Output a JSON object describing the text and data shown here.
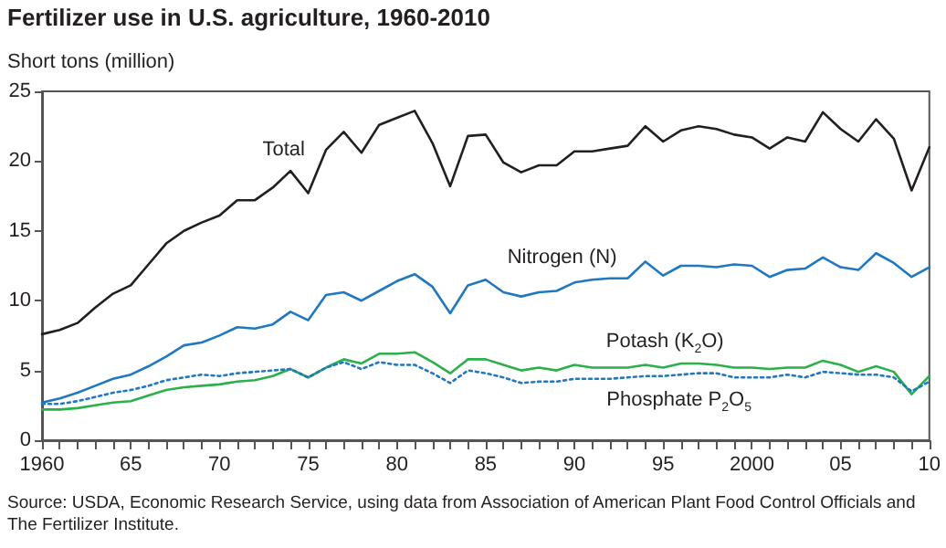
{
  "chart_data": {
    "type": "line",
    "title": "Fertilizer use in U.S. agriculture, 1960-2010",
    "ylabel": "Short tons (million)",
    "x": [
      1960,
      1961,
      1962,
      1963,
      1964,
      1965,
      1966,
      1967,
      1968,
      1969,
      1970,
      1971,
      1972,
      1973,
      1974,
      1975,
      1976,
      1977,
      1978,
      1979,
      1980,
      1981,
      1982,
      1983,
      1984,
      1985,
      1986,
      1987,
      1988,
      1989,
      1990,
      1991,
      1992,
      1993,
      1994,
      1995,
      1996,
      1997,
      1998,
      1999,
      2000,
      2001,
      2002,
      2003,
      2004,
      2005,
      2006,
      2007,
      2008,
      2009,
      2010
    ],
    "series": [
      {
        "name": "Total",
        "color": "#231f20",
        "line_style": "solid",
        "values": [
          7.6,
          7.9,
          8.4,
          9.5,
          10.5,
          11.1,
          12.6,
          14.1,
          15.0,
          15.6,
          16.1,
          17.2,
          17.2,
          18.1,
          19.3,
          17.7,
          20.8,
          22.1,
          20.6,
          22.6,
          23.1,
          23.6,
          21.3,
          18.2,
          21.8,
          21.9,
          19.9,
          19.2,
          19.7,
          19.7,
          20.7,
          20.7,
          20.9,
          21.1,
          22.5,
          21.4,
          22.2,
          22.5,
          22.3,
          21.9,
          21.7,
          20.9,
          21.7,
          21.4,
          23.5,
          22.3,
          21.4,
          23.0,
          21.6,
          17.9,
          21.0
        ]
      },
      {
        "name": "Nitrogen (N)",
        "color": "#1f78c1",
        "line_style": "solid",
        "values": [
          2.7,
          3.0,
          3.4,
          3.9,
          4.4,
          4.7,
          5.3,
          6.0,
          6.8,
          7.0,
          7.5,
          8.1,
          8.0,
          8.3,
          9.2,
          8.6,
          10.4,
          10.6,
          10.0,
          10.7,
          11.4,
          11.9,
          11.0,
          9.1,
          11.1,
          11.5,
          10.6,
          10.3,
          10.6,
          10.7,
          11.3,
          11.5,
          11.6,
          11.6,
          12.8,
          11.8,
          12.5,
          12.5,
          12.4,
          12.6,
          12.5,
          11.7,
          12.2,
          12.3,
          13.1,
          12.4,
          12.2,
          13.4,
          12.7,
          11.7,
          12.4
        ]
      },
      {
        "name": "Potash (K$_{2}$O)",
        "color": "#2bb04a",
        "line_style": "solid",
        "values": [
          2.2,
          2.2,
          2.3,
          2.5,
          2.7,
          2.8,
          3.2,
          3.6,
          3.8,
          3.9,
          4.0,
          4.2,
          4.3,
          4.6,
          5.1,
          4.5,
          5.2,
          5.8,
          5.5,
          6.2,
          6.2,
          6.3,
          5.6,
          4.8,
          5.8,
          5.8,
          5.4,
          5.0,
          5.2,
          5.0,
          5.4,
          5.2,
          5.2,
          5.2,
          5.4,
          5.2,
          5.5,
          5.5,
          5.4,
          5.2,
          5.2,
          5.1,
          5.2,
          5.2,
          5.7,
          5.4,
          4.9,
          5.3,
          4.9,
          3.3,
          4.6
        ]
      },
      {
        "name": "Phosphate P$_{2}$O$_{5}$",
        "color": "#1f78c1",
        "line_style": "dotted",
        "values": [
          2.6,
          2.6,
          2.8,
          3.1,
          3.4,
          3.6,
          3.9,
          4.3,
          4.5,
          4.7,
          4.6,
          4.8,
          4.9,
          5.0,
          5.1,
          4.5,
          5.2,
          5.6,
          5.1,
          5.6,
          5.4,
          5.4,
          4.8,
          4.1,
          5.0,
          4.8,
          4.5,
          4.1,
          4.2,
          4.2,
          4.4,
          4.4,
          4.4,
          4.5,
          4.6,
          4.6,
          4.7,
          4.8,
          4.8,
          4.5,
          4.5,
          4.5,
          4.7,
          4.5,
          4.9,
          4.8,
          4.7,
          4.7,
          4.5,
          3.5,
          4.2
        ]
      }
    ],
    "xlim": [
      1960,
      2010
    ],
    "xticks": [
      {
        "value": 1960,
        "label": "1960"
      },
      {
        "value": 1961,
        "label": null
      },
      {
        "value": 1962,
        "label": null
      },
      {
        "value": 1963,
        "label": null
      },
      {
        "value": 1964,
        "label": null
      },
      {
        "value": 1965,
        "label": "65"
      },
      {
        "value": 1966,
        "label": null
      },
      {
        "value": 1967,
        "label": null
      },
      {
        "value": 1968,
        "label": null
      },
      {
        "value": 1969,
        "label": null
      },
      {
        "value": 1970,
        "label": "70"
      },
      {
        "value": 1971,
        "label": null
      },
      {
        "value": 1972,
        "label": null
      },
      {
        "value": 1973,
        "label": null
      },
      {
        "value": 1974,
        "label": null
      },
      {
        "value": 1975,
        "label": "75"
      },
      {
        "value": 1976,
        "label": null
      },
      {
        "value": 1977,
        "label": null
      },
      {
        "value": 1978,
        "label": null
      },
      {
        "value": 1979,
        "label": null
      },
      {
        "value": 1980,
        "label": "80"
      },
      {
        "value": 1981,
        "label": null
      },
      {
        "value": 1982,
        "label": null
      },
      {
        "value": 1983,
        "label": null
      },
      {
        "value": 1984,
        "label": null
      },
      {
        "value": 1985,
        "label": "85"
      },
      {
        "value": 1986,
        "label": null
      },
      {
        "value": 1987,
        "label": null
      },
      {
        "value": 1988,
        "label": null
      },
      {
        "value": 1989,
        "label": null
      },
      {
        "value": 1990,
        "label": "90"
      },
      {
        "value": 1991,
        "label": null
      },
      {
        "value": 1992,
        "label": null
      },
      {
        "value": 1993,
        "label": null
      },
      {
        "value": 1994,
        "label": null
      },
      {
        "value": 1995,
        "label": "95"
      },
      {
        "value": 1996,
        "label": null
      },
      {
        "value": 1997,
        "label": null
      },
      {
        "value": 1998,
        "label": null
      },
      {
        "value": 1999,
        "label": null
      },
      {
        "value": 2000,
        "label": "2000"
      },
      {
        "value": 2001,
        "label": null
      },
      {
        "value": 2002,
        "label": null
      },
      {
        "value": 2003,
        "label": null
      },
      {
        "value": 2004,
        "label": null
      },
      {
        "value": 2005,
        "label": "05"
      },
      {
        "value": 2006,
        "label": null
      },
      {
        "value": 2007,
        "label": null
      },
      {
        "value": 2008,
        "label": null
      },
      {
        "value": 2009,
        "label": null
      },
      {
        "value": 2010,
        "label": "10"
      }
    ],
    "ylim": [
      0,
      25
    ],
    "yticks": [
      0,
      5,
      10,
      15,
      20,
      25
    ],
    "grid": false,
    "marker": "none",
    "annotations": [
      "Source: USDA, Economic Research Service, using data from Association of American Plant Food Control Officials and The Fertilizer Institute."
    ]
  }
}
